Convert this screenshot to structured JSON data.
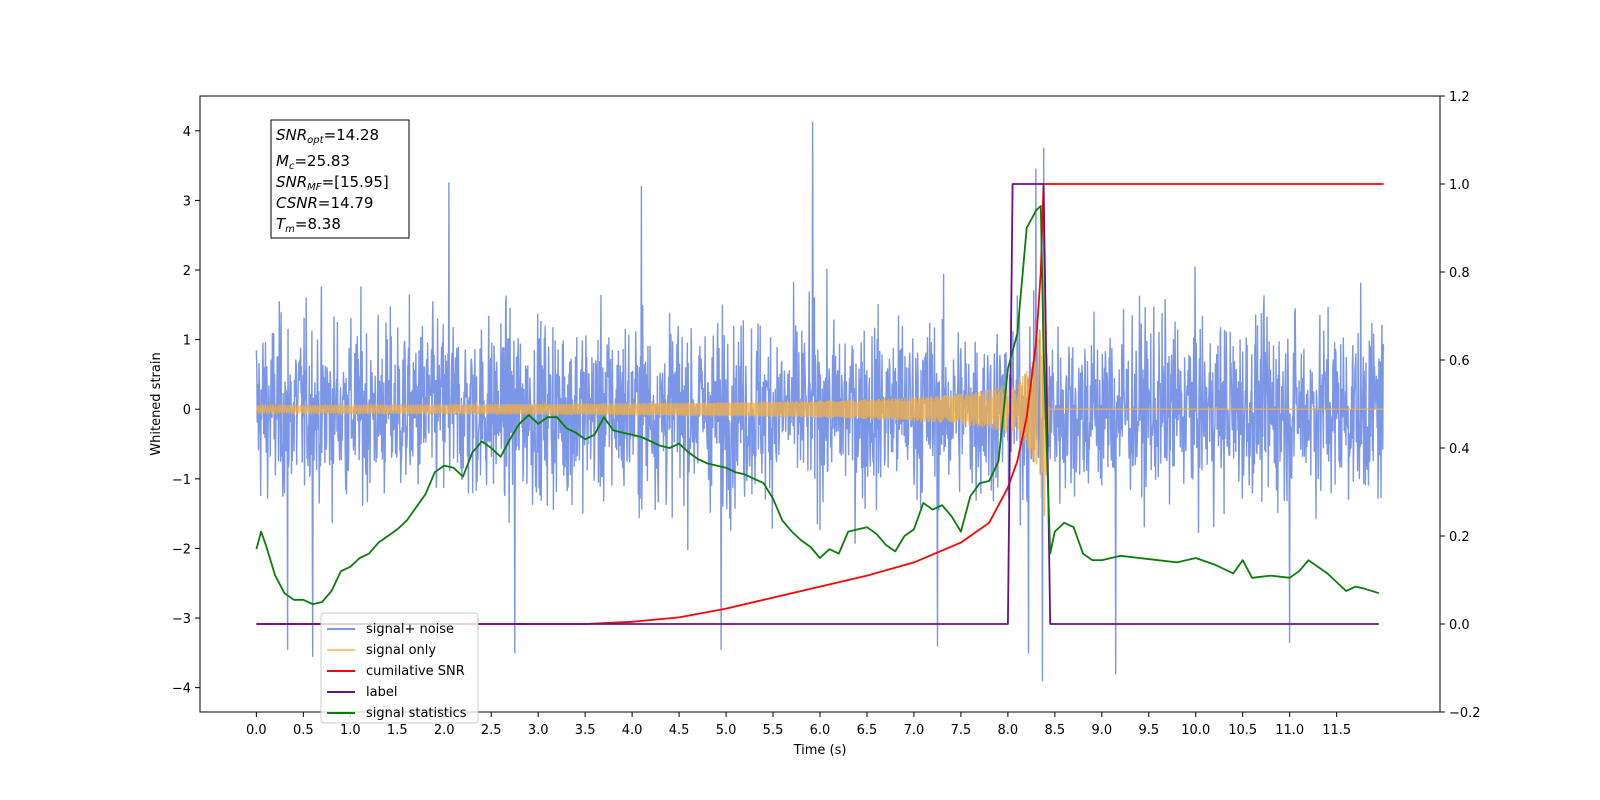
{
  "chart_data": {
    "type": "line",
    "title": "",
    "xlabel": "Time (s)",
    "ylabel": "Whitened strain",
    "xlim": [
      -0.6,
      12.6
    ],
    "ylim": [
      -4.35,
      4.5
    ],
    "y2lim": [
      -0.2,
      1.2
    ],
    "x_ticks": [
      0.0,
      0.5,
      1.0,
      1.5,
      2.0,
      2.5,
      3.0,
      3.5,
      4.0,
      4.5,
      5.0,
      5.5,
      6.0,
      6.5,
      7.0,
      7.5,
      8.0,
      8.5,
      9.0,
      9.5,
      10.0,
      10.5,
      11.0,
      11.5
    ],
    "x_tick_labels": [
      "0.0",
      "0.5",
      "1.0",
      "1.5",
      "2.0",
      "2.5",
      "3.0",
      "3.5",
      "4.0",
      "4.5",
      "5.0",
      "5.5",
      "6.0",
      "6.5",
      "7.0",
      "7.5",
      "8.0",
      "8.5",
      "9.0",
      "9.5",
      "10.0",
      "10.5",
      "11.0",
      "11.5"
    ],
    "y_ticks": [
      -4,
      -3,
      -2,
      -1,
      0,
      1,
      2,
      3,
      4
    ],
    "y_tick_labels": [
      "−4",
      "−3",
      "−2",
      "−1",
      "0",
      "1",
      "2",
      "3",
      "4"
    ],
    "y2_ticks": [
      -0.2,
      0.0,
      0.2,
      0.4,
      0.6,
      0.8,
      1.0,
      1.2
    ],
    "y2_tick_labels": [
      "−0.2",
      "0.0",
      "0.2",
      "0.4",
      "0.6",
      "0.8",
      "1.0",
      "1.2"
    ],
    "grid": false,
    "legend_position": "lower-left",
    "annotation": {
      "lines": [
        {
          "base": "SNR",
          "sub": "opt",
          "rest": "=14.28"
        },
        {
          "base": "M",
          "sub": "c",
          "rest": "=25.83"
        },
        {
          "base": "SNR",
          "sub": "MF",
          "rest": "=[15.95]"
        },
        {
          "base": "CSNR",
          "sub": "",
          "rest": "=14.79"
        },
        {
          "base": "T",
          "sub": "m",
          "rest": "=8.38"
        }
      ]
    },
    "series": [
      {
        "name": "signal+ noise",
        "axis": "left",
        "color": "#7b96e6",
        "style": "noise",
        "x_range": [
          0.0,
          12.0
        ],
        "amplitude_typical": [
          -2.0,
          2.0
        ],
        "peaks": [
          {
            "x": 5.92,
            "y": 4.12
          },
          {
            "x": 8.38,
            "y": 3.75
          },
          {
            "x": 8.37,
            "y": -3.9
          },
          {
            "x": 9.15,
            "y": -3.8
          },
          {
            "x": 0.33,
            "y": -3.45
          },
          {
            "x": 0.6,
            "y": -3.55
          },
          {
            "x": 2.75,
            "y": -3.5
          },
          {
            "x": 4.95,
            "y": -3.45
          },
          {
            "x": 7.25,
            "y": -3.4
          },
          {
            "x": 8.22,
            "y": -3.5
          },
          {
            "x": 11.0,
            "y": -3.35
          },
          {
            "x": 2.05,
            "y": 3.25
          },
          {
            "x": 4.1,
            "y": 3.2
          },
          {
            "x": 8.3,
            "y": 3.45
          }
        ]
      },
      {
        "name": "signal only",
        "axis": "left",
        "color": "#f5b041",
        "style": "chirp",
        "x_range": [
          0.0,
          12.0
        ],
        "merger_time": 8.38,
        "peak_amplitude": 2.2
      },
      {
        "name": "cumilative SNR",
        "axis": "right",
        "color": "#ff0000",
        "points": [
          [
            0.0,
            0.0
          ],
          [
            3.0,
            0.0
          ],
          [
            3.5,
            0.0
          ],
          [
            4.0,
            0.005
          ],
          [
            4.5,
            0.015
          ],
          [
            5.0,
            0.035
          ],
          [
            5.5,
            0.06
          ],
          [
            6.0,
            0.085
          ],
          [
            6.5,
            0.11
          ],
          [
            7.0,
            0.14
          ],
          [
            7.5,
            0.185
          ],
          [
            7.8,
            0.23
          ],
          [
            8.0,
            0.31
          ],
          [
            8.1,
            0.37
          ],
          [
            8.2,
            0.47
          ],
          [
            8.3,
            0.64
          ],
          [
            8.35,
            0.8
          ],
          [
            8.38,
            1.0
          ],
          [
            12.0,
            1.0
          ]
        ]
      },
      {
        "name": "label",
        "axis": "right",
        "color": "#6a0f8a",
        "points": [
          [
            0.0,
            0.0
          ],
          [
            8.0,
            0.0
          ],
          [
            8.05,
            1.0
          ],
          [
            8.38,
            1.0
          ],
          [
            8.45,
            0.0
          ],
          [
            11.95,
            0.0
          ]
        ]
      },
      {
        "name": "signal statistics",
        "axis": "right",
        "color": "#0a7d0a",
        "points": [
          [
            0.0,
            0.17
          ],
          [
            0.05,
            0.21
          ],
          [
            0.1,
            0.18
          ],
          [
            0.2,
            0.11
          ],
          [
            0.3,
            0.07
          ],
          [
            0.4,
            0.055
          ],
          [
            0.5,
            0.055
          ],
          [
            0.6,
            0.045
          ],
          [
            0.7,
            0.05
          ],
          [
            0.8,
            0.075
          ],
          [
            0.9,
            0.12
          ],
          [
            1.0,
            0.13
          ],
          [
            1.1,
            0.15
          ],
          [
            1.2,
            0.16
          ],
          [
            1.3,
            0.185
          ],
          [
            1.4,
            0.2
          ],
          [
            1.5,
            0.215
          ],
          [
            1.6,
            0.235
          ],
          [
            1.7,
            0.265
          ],
          [
            1.8,
            0.295
          ],
          [
            1.9,
            0.345
          ],
          [
            2.0,
            0.36
          ],
          [
            2.1,
            0.355
          ],
          [
            2.2,
            0.335
          ],
          [
            2.3,
            0.39
          ],
          [
            2.4,
            0.415
          ],
          [
            2.5,
            0.4
          ],
          [
            2.6,
            0.38
          ],
          [
            2.7,
            0.42
          ],
          [
            2.8,
            0.455
          ],
          [
            2.9,
            0.475
          ],
          [
            3.0,
            0.455
          ],
          [
            3.1,
            0.47
          ],
          [
            3.2,
            0.47
          ],
          [
            3.3,
            0.445
          ],
          [
            3.4,
            0.435
          ],
          [
            3.5,
            0.42
          ],
          [
            3.6,
            0.43
          ],
          [
            3.7,
            0.47
          ],
          [
            3.8,
            0.44
          ],
          [
            3.9,
            0.435
          ],
          [
            4.0,
            0.43
          ],
          [
            4.1,
            0.425
          ],
          [
            4.2,
            0.415
          ],
          [
            4.3,
            0.405
          ],
          [
            4.4,
            0.4
          ],
          [
            4.5,
            0.41
          ],
          [
            4.6,
            0.39
          ],
          [
            4.7,
            0.375
          ],
          [
            4.8,
            0.365
          ],
          [
            4.9,
            0.36
          ],
          [
            5.0,
            0.355
          ],
          [
            5.1,
            0.345
          ],
          [
            5.2,
            0.34
          ],
          [
            5.3,
            0.33
          ],
          [
            5.4,
            0.32
          ],
          [
            5.5,
            0.285
          ],
          [
            5.6,
            0.235
          ],
          [
            5.7,
            0.21
          ],
          [
            5.8,
            0.19
          ],
          [
            5.9,
            0.175
          ],
          [
            6.0,
            0.15
          ],
          [
            6.1,
            0.17
          ],
          [
            6.2,
            0.16
          ],
          [
            6.3,
            0.21
          ],
          [
            6.4,
            0.215
          ],
          [
            6.5,
            0.22
          ],
          [
            6.6,
            0.205
          ],
          [
            6.7,
            0.18
          ],
          [
            6.8,
            0.165
          ],
          [
            6.9,
            0.2
          ],
          [
            7.0,
            0.215
          ],
          [
            7.1,
            0.275
          ],
          [
            7.2,
            0.26
          ],
          [
            7.3,
            0.27
          ],
          [
            7.4,
            0.245
          ],
          [
            7.5,
            0.21
          ],
          [
            7.6,
            0.29
          ],
          [
            7.7,
            0.32
          ],
          [
            7.8,
            0.325
          ],
          [
            7.9,
            0.37
          ],
          [
            8.0,
            0.58
          ],
          [
            8.1,
            0.66
          ],
          [
            8.2,
            0.9
          ],
          [
            8.3,
            0.94
          ],
          [
            8.35,
            0.95
          ],
          [
            8.38,
            0.62
          ],
          [
            8.45,
            0.16
          ],
          [
            8.5,
            0.21
          ],
          [
            8.6,
            0.23
          ],
          [
            8.7,
            0.22
          ],
          [
            8.8,
            0.16
          ],
          [
            8.9,
            0.145
          ],
          [
            9.0,
            0.145
          ],
          [
            9.2,
            0.155
          ],
          [
            9.4,
            0.15
          ],
          [
            9.6,
            0.145
          ],
          [
            9.8,
            0.14
          ],
          [
            10.0,
            0.15
          ],
          [
            10.2,
            0.135
          ],
          [
            10.4,
            0.115
          ],
          [
            10.5,
            0.145
          ],
          [
            10.6,
            0.105
          ],
          [
            10.8,
            0.11
          ],
          [
            11.0,
            0.105
          ],
          [
            11.1,
            0.12
          ],
          [
            11.2,
            0.145
          ],
          [
            11.4,
            0.115
          ],
          [
            11.6,
            0.075
          ],
          [
            11.7,
            0.085
          ],
          [
            11.8,
            0.08
          ],
          [
            11.95,
            0.07
          ]
        ]
      }
    ],
    "legend": [
      {
        "name": "signal+ noise",
        "color": "#7b96e6"
      },
      {
        "name": "signal only",
        "color": "#f9c87a"
      },
      {
        "name": "cumilative SNR",
        "color": "#ff0000"
      },
      {
        "name": "label",
        "color": "#6a0f8a"
      },
      {
        "name": "signal statistics",
        "color": "#0a7d0a"
      }
    ]
  }
}
